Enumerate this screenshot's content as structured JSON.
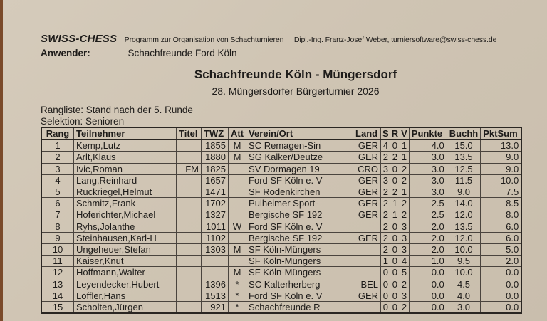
{
  "header": {
    "brand": "SWISS-CHESS",
    "program_desc": "Programm zur Organisation von Schachturnieren",
    "author": "Dipl.-Ing. Franz-Josef Weber, turniersoftware@swiss-chess.de",
    "user_label": "Anwender:",
    "user_value": "Schachfreunde Ford Köln"
  },
  "title": "Schachfreunde Köln - Müngersdorf",
  "subtitle": "28. Müngersdorfer Bürgerturnier 2026",
  "meta": {
    "ranking": "Rangliste:  Stand nach der 5. Runde",
    "selection": "Selektion: Senioren"
  },
  "table": {
    "columns": {
      "rang": "Rang",
      "teilnehmer": "Teilnehmer",
      "titel": "Titel",
      "twz": "TWZ",
      "att": "Att",
      "verein": "Verein/Ort",
      "land": "Land",
      "s": "S",
      "r": "R",
      "v": "V",
      "punkte": "Punkte",
      "buchh": "Buchh",
      "pktsum": "PktSum"
    },
    "rows": [
      {
        "rang": "1",
        "name": "Kemp,Lutz",
        "titel": "",
        "twz": "1855",
        "att": "M",
        "verein": "SC Remagen-Sin",
        "land": "GER",
        "s": "4",
        "r": "0",
        "v": "1",
        "punkte": "4.0",
        "buchh": "15.0",
        "pktsum": "13.0"
      },
      {
        "rang": "2",
        "name": "Arlt,Klaus",
        "titel": "",
        "twz": "1880",
        "att": "M",
        "verein": "SG Kalker/Deutze",
        "land": "GER",
        "s": "2",
        "r": "2",
        "v": "1",
        "punkte": "3.0",
        "buchh": "13.5",
        "pktsum": "9.0"
      },
      {
        "rang": "3",
        "name": "Ivic,Roman",
        "titel": "FM",
        "twz": "1825",
        "att": "",
        "verein": "SV Dormagen 19",
        "land": "CRO",
        "s": "3",
        "r": "0",
        "v": "2",
        "punkte": "3.0",
        "buchh": "12.5",
        "pktsum": "9.0"
      },
      {
        "rang": "4",
        "name": "Lang,Reinhard",
        "titel": "",
        "twz": "1657",
        "att": "",
        "verein": "Ford SF Köln e. V",
        "land": "GER",
        "s": "3",
        "r": "0",
        "v": "2",
        "punkte": "3.0",
        "buchh": "11.5",
        "pktsum": "10.0"
      },
      {
        "rang": "5",
        "name": "Ruckriegel,Helmut",
        "titel": "",
        "twz": "1471",
        "att": "",
        "verein": "SF Rodenkirchen",
        "land": "GER",
        "s": "2",
        "r": "2",
        "v": "1",
        "punkte": "3.0",
        "buchh": "9.0",
        "pktsum": "7.5"
      },
      {
        "rang": "6",
        "name": "Schmitz,Frank",
        "titel": "",
        "twz": "1702",
        "att": "",
        "verein": "Pulheimer Sport-",
        "land": "GER",
        "s": "2",
        "r": "1",
        "v": "2",
        "punkte": "2.5",
        "buchh": "14.0",
        "pktsum": "8.5"
      },
      {
        "rang": "7",
        "name": "Hoferichter,Michael",
        "titel": "",
        "twz": "1327",
        "att": "",
        "verein": "Bergische SF 192",
        "land": "GER",
        "s": "2",
        "r": "1",
        "v": "2",
        "punkte": "2.5",
        "buchh": "12.0",
        "pktsum": "8.0"
      },
      {
        "rang": "8",
        "name": "Ryhs,Jolanthe",
        "titel": "",
        "twz": "1011",
        "att": "W",
        "verein": "Ford SF Köln e. V",
        "land": "",
        "s": "2",
        "r": "0",
        "v": "3",
        "punkte": "2.0",
        "buchh": "13.5",
        "pktsum": "6.0"
      },
      {
        "rang": "9",
        "name": "Steinhausen,Karl-H",
        "titel": "",
        "twz": "1102",
        "att": "",
        "verein": "Bergische SF 192",
        "land": "GER",
        "s": "2",
        "r": "0",
        "v": "3",
        "punkte": "2.0",
        "buchh": "12.0",
        "pktsum": "6.0"
      },
      {
        "rang": "10",
        "name": "Ungeheuer,Stefan",
        "titel": "",
        "twz": "1303",
        "att": "M",
        "verein": "SF Köln-Müngers",
        "land": "",
        "s": "2",
        "r": "0",
        "v": "3",
        "punkte": "2.0",
        "buchh": "10.0",
        "pktsum": "5.0"
      },
      {
        "rang": "11",
        "name": "Kaiser,Knut",
        "titel": "",
        "twz": "",
        "att": "",
        "verein": "SF Köln-Müngers",
        "land": "",
        "s": "1",
        "r": "0",
        "v": "4",
        "punkte": "1.0",
        "buchh": "9.5",
        "pktsum": "2.0"
      },
      {
        "rang": "12",
        "name": "Hoffmann,Walter",
        "titel": "",
        "twz": "",
        "att": "M",
        "verein": "SF Köln-Müngers",
        "land": "",
        "s": "0",
        "r": "0",
        "v": "5",
        "punkte": "0.0",
        "buchh": "10.0",
        "pktsum": "0.0"
      },
      {
        "rang": "13",
        "name": "Leyendecker,Hubert",
        "titel": "",
        "twz": "1396",
        "att": "*",
        "verein": "SC Kalterherberg",
        "land": "BEL",
        "s": "0",
        "r": "0",
        "v": "2",
        "punkte": "0.0",
        "buchh": "4.5",
        "pktsum": "0.0"
      },
      {
        "rang": "14",
        "name": "Löffler,Hans",
        "titel": "",
        "twz": "1513",
        "att": "*",
        "verein": "Ford SF Köln e. V",
        "land": "GER",
        "s": "0",
        "r": "0",
        "v": "3",
        "punkte": "0.0",
        "buchh": "4.0",
        "pktsum": "0.0"
      },
      {
        "rang": "15",
        "name": "Scholten,Jürgen",
        "titel": "",
        "twz": "921",
        "att": "*",
        "verein": "Schachfreunde R",
        "land": "",
        "s": "0",
        "r": "0",
        "v": "2",
        "punkte": "0.0",
        "buchh": "3.0",
        "pktsum": "0.0"
      }
    ]
  }
}
